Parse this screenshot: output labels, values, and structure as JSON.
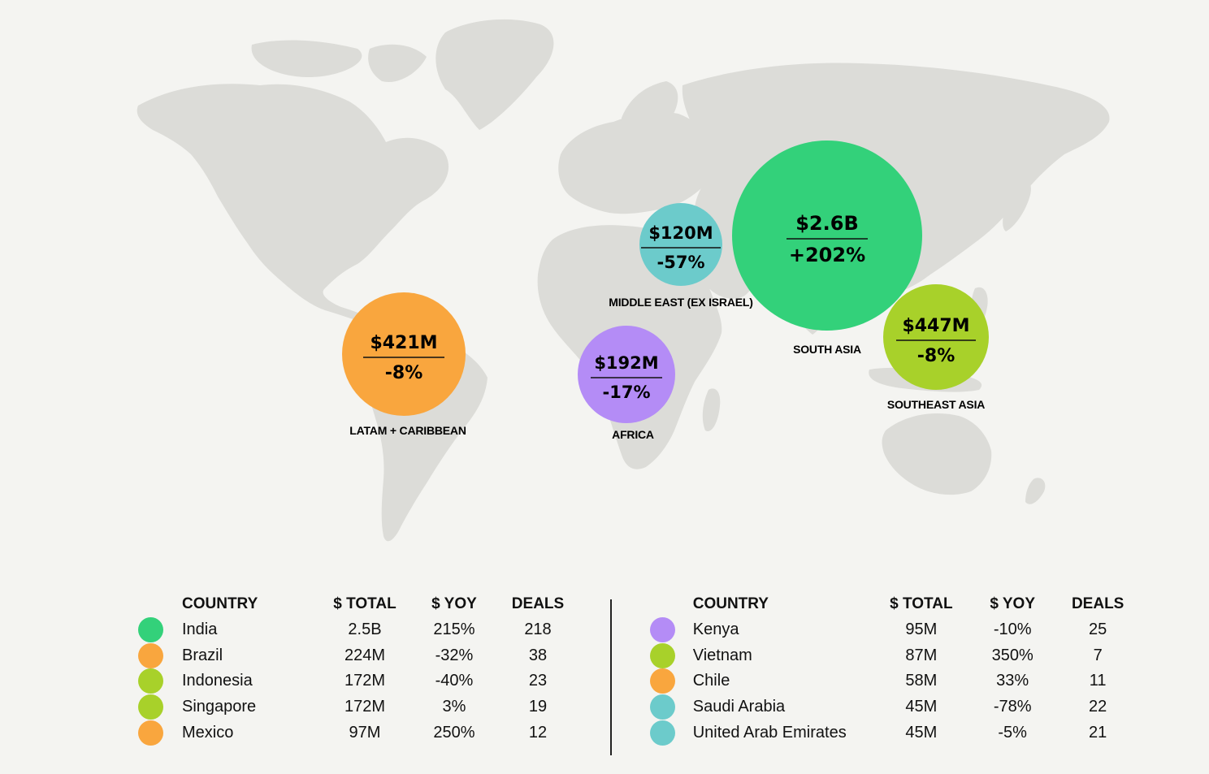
{
  "colors": {
    "green": "#33d17a",
    "orange": "#f9a63e",
    "lime": "#a8d12a",
    "teal": "#6ccbcb",
    "purple": "#b48cf6",
    "land": "#dcdcd8",
    "background": "#f4f4f1"
  },
  "regions": [
    {
      "name": "south-asia",
      "label": "SOUTH ASIA",
      "total": "$2.6B",
      "yoy": "+202%",
      "color": "green"
    },
    {
      "name": "middle-east",
      "label": "MIDDLE EAST (EX ISRAEL)",
      "total": "$120M",
      "yoy": "-57%",
      "color": "teal"
    },
    {
      "name": "latam",
      "label": "LATAM + CARIBBEAN",
      "total": "$421M",
      "yoy": "-8%",
      "color": "orange"
    },
    {
      "name": "africa",
      "label": "AFRICA",
      "total": "$192M",
      "yoy": "-17%",
      "color": "purple"
    },
    {
      "name": "southeast-asia",
      "label": "SOUTHEAST ASIA",
      "total": "$447M",
      "yoy": "-8%",
      "color": "lime"
    }
  ],
  "table_headers": {
    "country": "COUNTRY",
    "total": "$ TOTAL",
    "yoy": "$ YOY",
    "deals": "DEALS"
  },
  "left_table": [
    {
      "country": "India",
      "total": "2.5B",
      "yoy": "215%",
      "deals": "218",
      "color": "green"
    },
    {
      "country": "Brazil",
      "total": "224M",
      "yoy": "-32%",
      "deals": "38",
      "color": "orange"
    },
    {
      "country": "Indonesia",
      "total": "172M",
      "yoy": "-40%",
      "deals": "23",
      "color": "lime"
    },
    {
      "country": "Singapore",
      "total": "172M",
      "yoy": "3%",
      "deals": "19",
      "color": "lime"
    },
    {
      "country": "Mexico",
      "total": "97M",
      "yoy": "250%",
      "deals": "12",
      "color": "orange"
    }
  ],
  "right_table": [
    {
      "country": "Kenya",
      "total": "95M",
      "yoy": "-10%",
      "deals": "25",
      "color": "purple"
    },
    {
      "country": "Vietnam",
      "total": "87M",
      "yoy": "350%",
      "deals": "7",
      "color": "lime"
    },
    {
      "country": "Chile",
      "total": "58M",
      "yoy": "33%",
      "deals": "11",
      "color": "orange"
    },
    {
      "country": "Saudi Arabia",
      "total": "45M",
      "yoy": "-78%",
      "deals": "22",
      "color": "teal"
    },
    {
      "country": "United Arab Emirates",
      "total": "45M",
      "yoy": "-5%",
      "deals": "21",
      "color": "teal"
    }
  ]
}
